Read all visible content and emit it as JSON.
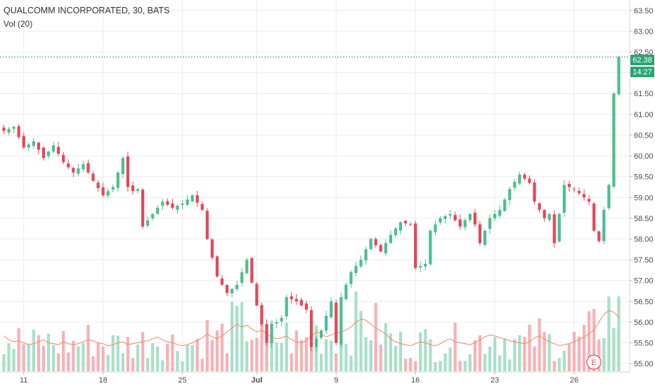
{
  "header": {
    "title": "QUALCOMM INCORPORATED, 30, BATS",
    "volume_label": "Vol (20)"
  },
  "price_tag": {
    "value": "62.38",
    "timer": "14:27",
    "color": "#2aa476"
  },
  "earnings_marker": {
    "label": "E",
    "color": "#e5475a"
  },
  "colors": {
    "up": "#4cbf8f",
    "down": "#e5475a",
    "vol_up": "#a9e0c8",
    "vol_down": "#f6b2b7",
    "vol_ma": "#f08a6a",
    "grid": "#ececec"
  },
  "chart_data": {
    "type": "candlestick",
    "title": "QUALCOMM INCORPORATED, 30, BATS",
    "x_ticks": [
      "11",
      "18",
      "25",
      "Jul",
      "9",
      "16",
      "23",
      "26"
    ],
    "y_ticks": [
      55.0,
      55.5,
      56.0,
      56.5,
      57.0,
      57.5,
      58.0,
      58.5,
      59.0,
      59.5,
      60.0,
      60.5,
      61.0,
      61.5,
      62.0,
      62.5,
      63.0,
      63.5
    ],
    "ylim": [
      54.8,
      63.75
    ],
    "last_price": 62.38,
    "close_path": [
      [
        0,
        60.6
      ],
      [
        2,
        60.7
      ],
      [
        4,
        60.2
      ],
      [
        6,
        60.35
      ],
      [
        8,
        59.95
      ],
      [
        10,
        60.25
      ],
      [
        12,
        59.85
      ],
      [
        14,
        59.6
      ],
      [
        16,
        59.8
      ],
      [
        18,
        59.4
      ],
      [
        20,
        59.05
      ],
      [
        22,
        59.25
      ],
      [
        24,
        59.95
      ],
      [
        25,
        59.25
      ],
      [
        26,
        59.15
      ],
      [
        27,
        59.2
      ],
      [
        28,
        58.3
      ],
      [
        30,
        58.6
      ],
      [
        32,
        58.9
      ],
      [
        34,
        58.75
      ],
      [
        36,
        58.85
      ],
      [
        38,
        59.05
      ],
      [
        40,
        58.7
      ],
      [
        41,
        58.0
      ],
      [
        43,
        57.1
      ],
      [
        45,
        56.7
      ],
      [
        47,
        56.9
      ],
      [
        49,
        57.5
      ],
      [
        51,
        56.4
      ],
      [
        53,
        55.5
      ],
      [
        54,
        55.95
      ],
      [
        55,
        56.0
      ],
      [
        56,
        56.1
      ],
      [
        57,
        56.6
      ],
      [
        59,
        56.5
      ],
      [
        61,
        56.3
      ],
      [
        62,
        55.4
      ],
      [
        64,
        55.8
      ],
      [
        66,
        56.5
      ],
      [
        67,
        55.5
      ],
      [
        68,
        56.6
      ],
      [
        70,
        57.2
      ],
      [
        72,
        57.5
      ],
      [
        74,
        58.0
      ],
      [
        76,
        57.7
      ],
      [
        78,
        58.1
      ],
      [
        80,
        58.4
      ],
      [
        82,
        58.35
      ],
      [
        83,
        57.3
      ],
      [
        85,
        57.4
      ],
      [
        86,
        58.2
      ],
      [
        88,
        58.5
      ],
      [
        90,
        58.6
      ],
      [
        92,
        58.3
      ],
      [
        94,
        58.6
      ],
      [
        95,
        58.35
      ],
      [
        96,
        57.9
      ],
      [
        98,
        58.5
      ],
      [
        100,
        58.7
      ],
      [
        102,
        59.2
      ],
      [
        104,
        59.55
      ],
      [
        106,
        59.35
      ],
      [
        107,
        58.9
      ],
      [
        109,
        58.5
      ],
      [
        110,
        58.6
      ],
      [
        111,
        57.9
      ],
      [
        113,
        59.3
      ],
      [
        115,
        59.2
      ],
      [
        116,
        59.1
      ],
      [
        118,
        58.9
      ],
      [
        119,
        58.2
      ],
      [
        120,
        57.95
      ],
      [
        121,
        58.7
      ],
      [
        122,
        59.3
      ],
      [
        123,
        61.5
      ],
      [
        124,
        62.38
      ]
    ],
    "volume_ma": [
      0.36,
      0.32,
      0.3,
      0.31,
      0.29,
      0.27,
      0.28,
      0.3,
      0.32,
      0.29,
      0.28,
      0.27,
      0.3,
      0.28,
      0.27,
      0.28,
      0.3,
      0.32,
      0.31,
      0.29,
      0.28,
      0.26,
      0.27,
      0.29,
      0.3,
      0.27,
      0.28,
      0.29,
      0.3,
      0.31,
      0.33,
      0.35,
      0.32,
      0.3,
      0.29,
      0.27,
      0.26,
      0.27,
      0.29,
      0.31,
      0.34,
      0.38,
      0.35,
      0.33,
      0.36,
      0.4,
      0.44,
      0.48,
      0.45,
      0.47,
      0.43,
      0.4,
      0.42,
      0.38,
      0.35,
      0.33,
      0.34,
      0.36,
      0.32,
      0.3,
      0.29,
      0.31,
      0.36,
      0.4,
      0.38,
      0.35,
      0.37,
      0.39,
      0.4,
      0.42,
      0.45,
      0.5,
      0.53,
      0.52,
      0.48,
      0.44,
      0.41,
      0.38,
      0.33,
      0.3,
      0.28,
      0.27,
      0.26,
      0.28,
      0.3,
      0.29,
      0.27,
      0.26,
      0.28,
      0.31,
      0.33,
      0.3,
      0.29,
      0.28,
      0.27,
      0.29,
      0.32,
      0.35,
      0.37,
      0.36,
      0.34,
      0.33,
      0.31,
      0.3,
      0.29,
      0.28,
      0.3,
      0.34,
      0.36,
      0.33,
      0.3,
      0.28,
      0.26,
      0.27,
      0.28,
      0.3,
      0.32,
      0.35,
      0.38,
      0.42,
      0.5,
      0.58,
      0.62,
      0.6,
      0.55
    ]
  }
}
